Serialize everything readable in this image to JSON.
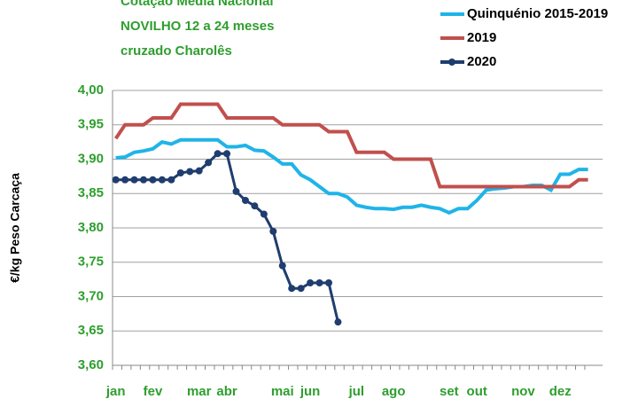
{
  "chart_data": {
    "type": "line",
    "title": [
      "Cotação Média Nacional",
      "NOVILHO 12 a 24 meses",
      "cruzado Charolês"
    ],
    "ylabel": "€/kg Peso Carcaça",
    "categories": [
      "jan",
      null,
      null,
      null,
      "fev",
      null,
      null,
      null,
      null,
      "mar",
      null,
      null,
      "abr",
      null,
      null,
      null,
      null,
      null,
      "mai",
      null,
      null,
      "jun",
      null,
      null,
      null,
      null,
      "jul",
      null,
      null,
      null,
      "ago",
      null,
      null,
      null,
      null,
      null,
      "set",
      null,
      null,
      "out",
      null,
      null,
      null,
      null,
      "nov",
      null,
      null,
      null,
      "dez",
      null,
      null,
      null
    ],
    "series": [
      {
        "name": "Quinquénio 2015-2019",
        "color": "#1fb4e8",
        "marker": false,
        "values": [
          3.902,
          3.903,
          3.91,
          3.912,
          3.915,
          3.925,
          3.922,
          3.928,
          3.928,
          3.928,
          3.928,
          3.928,
          3.918,
          3.918,
          3.92,
          3.913,
          3.912,
          3.903,
          3.893,
          3.893,
          3.877,
          3.87,
          3.86,
          3.85,
          3.85,
          3.845,
          3.833,
          3.83,
          3.828,
          3.828,
          3.827,
          3.83,
          3.83,
          3.833,
          3.83,
          3.828,
          3.822,
          3.828,
          3.828,
          3.84,
          3.855,
          3.857,
          3.858,
          3.86,
          3.86,
          3.862,
          3.862,
          3.855,
          3.878,
          3.878,
          3.885,
          3.885
        ]
      },
      {
        "name": "2019",
        "color": "#c0504d",
        "marker": false,
        "values": [
          3.93,
          3.95,
          3.95,
          3.95,
          3.96,
          3.96,
          3.96,
          3.98,
          3.98,
          3.98,
          3.98,
          3.98,
          3.96,
          3.96,
          3.96,
          3.96,
          3.96,
          3.96,
          3.95,
          3.95,
          3.95,
          3.95,
          3.95,
          3.94,
          3.94,
          3.94,
          3.91,
          3.91,
          3.91,
          3.91,
          3.9,
          3.9,
          3.9,
          3.9,
          3.9,
          3.86,
          3.86,
          3.86,
          3.86,
          3.86,
          3.86,
          3.86,
          3.86,
          3.86,
          3.86,
          3.86,
          3.86,
          3.86,
          3.86,
          3.86,
          3.87,
          3.87
        ]
      },
      {
        "name": "2020",
        "color": "#1f3d6e",
        "marker": true,
        "values": [
          3.87,
          3.87,
          3.87,
          3.87,
          3.87,
          3.87,
          3.87,
          3.88,
          3.882,
          3.883,
          3.895,
          3.908,
          3.908,
          3.853,
          3.84,
          3.832,
          3.82,
          3.795,
          3.745,
          3.712,
          3.712,
          3.72,
          3.72,
          3.72,
          3.663,
          null,
          null,
          null,
          null,
          null,
          null,
          null,
          null,
          null,
          null,
          null,
          null,
          null,
          null,
          null,
          null,
          null,
          null,
          null,
          null,
          null,
          null,
          null,
          null,
          null,
          null,
          null
        ]
      }
    ],
    "ylim": [
      3.6,
      4.0
    ],
    "yticks": [
      {
        "value": 3.6,
        "label": "3,60"
      },
      {
        "value": 3.65,
        "label": "3,65"
      },
      {
        "value": 3.7,
        "label": "3,70"
      },
      {
        "value": 3.75,
        "label": "3,75"
      },
      {
        "value": 3.8,
        "label": "3,80"
      },
      {
        "value": 3.85,
        "label": "3,85"
      },
      {
        "value": 3.9,
        "label": "3,90"
      },
      {
        "value": 3.95,
        "label": "3,95"
      },
      {
        "value": 4.0,
        "label": "4,00"
      }
    ],
    "grid": true,
    "legend": "top-right"
  }
}
